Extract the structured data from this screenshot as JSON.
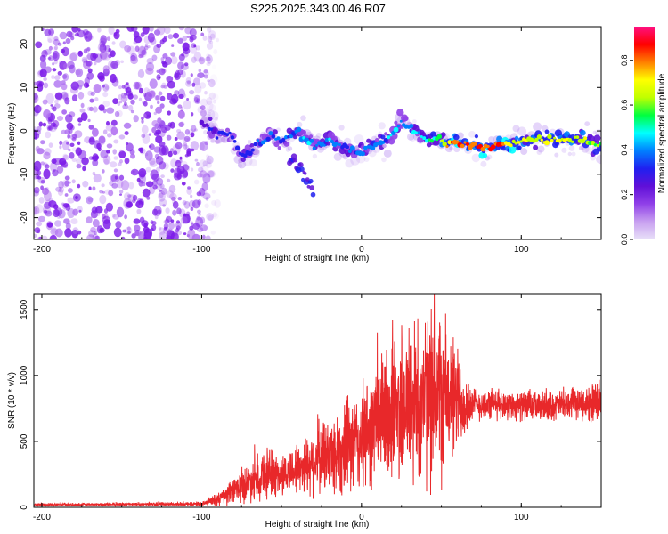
{
  "title": "S225.2025.343.00.46.R07",
  "colors": {
    "snr_line": "#e8282a",
    "axis": "#000000",
    "scatter_base": "#7a18e8"
  },
  "chart_data": [
    {
      "type": "heatmap",
      "xlabel": "Height of straight line (km)",
      "ylabel": "Frequency (Hz)",
      "xlim": [
        -205,
        150
      ],
      "ylim": [
        -25,
        24
      ],
      "xticks": [
        -200,
        -100,
        0,
        100
      ],
      "xtick_labels": [
        "-200",
        "-100",
        "0",
        "100"
      ],
      "yticks": [
        -20,
        -10,
        0,
        10,
        20
      ],
      "ytick_labels": [
        "-20",
        "-10",
        "0",
        "10",
        "20"
      ],
      "noise_region": {
        "x_from": -205,
        "x_to": -90,
        "f_from": -25,
        "f_to": 24
      },
      "ridge": {
        "x": [
          -100,
          -95,
          -90,
          -85,
          -80,
          -75,
          -70,
          -65,
          -60,
          -55,
          -50,
          -45,
          -40,
          -35,
          -30,
          -25,
          -20,
          -15,
          -10,
          -5,
          0,
          5,
          10,
          15,
          20,
          25,
          30,
          35,
          40,
          45,
          50,
          55,
          60,
          65,
          70,
          75,
          80,
          85,
          90,
          95,
          100,
          105,
          110,
          115,
          120,
          125,
          130,
          135,
          140,
          145,
          150
        ],
        "f": [
          2,
          1,
          -1,
          0,
          -2,
          -6,
          -5,
          -3,
          -2,
          -1,
          -3,
          -1,
          0,
          -2,
          -3,
          -3,
          -2,
          -3,
          -4,
          -5,
          -5,
          -4,
          -3,
          -2,
          0,
          2,
          1,
          -1,
          -2,
          -2,
          -2,
          -3,
          -3,
          -3,
          -3,
          -4,
          -4,
          -3,
          -3,
          -3,
          -2,
          -2,
          -2,
          -2,
          -2,
          -2,
          -2,
          -2,
          -2,
          -3,
          -3
        ],
        "amp": [
          0.2,
          0.3,
          0.3,
          0.35,
          0.3,
          0.3,
          0.3,
          0.35,
          0.4,
          0.4,
          0.35,
          0.4,
          0.4,
          0.45,
          0.4,
          0.4,
          0.45,
          0.4,
          0.35,
          0.4,
          0.4,
          0.4,
          0.45,
          0.4,
          0.45,
          0.4,
          0.4,
          0.45,
          0.5,
          0.55,
          0.65,
          0.85,
          0.9,
          0.85,
          0.8,
          0.85,
          0.9,
          0.85,
          0.8,
          0.75,
          0.7,
          0.7,
          0.7,
          0.75,
          0.75,
          0.75,
          0.7,
          0.7,
          0.7,
          0.65,
          0.6
        ]
      },
      "branch": {
        "x": [
          -45,
          -40,
          -35,
          -30
        ],
        "f": [
          -6,
          -8,
          -10,
          -14
        ]
      },
      "colorbar": {
        "label": "Normalized spectral amplitude",
        "range": [
          0,
          0.95
        ],
        "ticks": [
          0.0,
          0.2,
          0.4,
          0.6,
          0.8
        ],
        "tick_labels": [
          "0.0",
          "0.2",
          "0.4",
          "0.6",
          "0.8"
        ],
        "stops": [
          "#e8e0f8",
          "#c8a0f0",
          "#9040e8",
          "#6010d8",
          "#2020f0",
          "#0080ff",
          "#00ffff",
          "#00ff40",
          "#c0ff00",
          "#ffff00",
          "#ff8000",
          "#ff0000",
          "#ff1080"
        ]
      }
    },
    {
      "type": "line",
      "xlabel": "Height of straight line (km)",
      "ylabel": "SNR (10 * v/v)",
      "xlim": [
        -205,
        150
      ],
      "ylim": [
        0,
        1620
      ],
      "xticks": [
        -200,
        -100,
        0,
        100
      ],
      "xtick_labels": [
        "-200",
        "-100",
        "0",
        "100"
      ],
      "yticks": [
        0,
        500,
        1000,
        1500
      ],
      "ytick_labels": [
        "0",
        "500",
        "1000",
        "1500"
      ],
      "envelope": {
        "x": [
          -205,
          -100,
          -90,
          -80,
          -70,
          -60,
          -50,
          -40,
          -30,
          -20,
          -10,
          0,
          10,
          20,
          30,
          40,
          50,
          60,
          70,
          80,
          90,
          100,
          110,
          120,
          130,
          140,
          150
        ],
        "mean": [
          20,
          25,
          60,
          120,
          200,
          260,
          240,
          300,
          350,
          400,
          450,
          500,
          650,
          750,
          800,
          820,
          850,
          820,
          780,
          780,
          780,
          770,
          760,
          770,
          780,
          790,
          780
        ],
        "spread": [
          10,
          15,
          50,
          100,
          150,
          200,
          150,
          200,
          250,
          300,
          350,
          400,
          450,
          600,
          650,
          650,
          650,
          400,
          120,
          120,
          110,
          110,
          110,
          110,
          110,
          120,
          200
        ]
      }
    }
  ]
}
